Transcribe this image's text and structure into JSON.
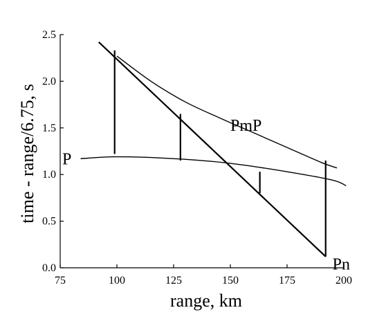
{
  "chart_data": {
    "type": "line",
    "title": "",
    "xlabel": "range, km",
    "ylabel": "time - range/6.75, s",
    "xlim": [
      75,
      200
    ],
    "ylim": [
      0,
      2.5
    ],
    "xticks": [
      75,
      100,
      125,
      150,
      175,
      200
    ],
    "yticks": [
      0.0,
      0.5,
      1.0,
      1.5,
      2.0,
      2.5
    ],
    "xtick_labels": [
      "75",
      "100",
      "125",
      "150",
      "175",
      "200"
    ],
    "ytick_labels": [
      "0.0",
      "0.5",
      "1.0",
      "1.5",
      "2.0",
      "2.5"
    ],
    "grid": false,
    "series": [
      {
        "name": "P",
        "stroke_width": 1.4,
        "points": [
          [
            84,
            1.17
          ],
          [
            100,
            1.19
          ],
          [
            125,
            1.17
          ],
          [
            150,
            1.12
          ],
          [
            175,
            1.03
          ],
          [
            195,
            0.94
          ],
          [
            201,
            0.88
          ]
        ]
      },
      {
        "name": "PmP",
        "stroke_width": 1.4,
        "points": [
          [
            100,
            2.27
          ],
          [
            115,
            2.0
          ],
          [
            130,
            1.78
          ],
          [
            145,
            1.61
          ],
          [
            160,
            1.45
          ],
          [
            175,
            1.29
          ],
          [
            190,
            1.13
          ],
          [
            197,
            1.07
          ]
        ]
      },
      {
        "name": "Pn",
        "stroke_width": 2.2,
        "points": [
          [
            92,
            2.42
          ],
          [
            192,
            0.12
          ]
        ]
      }
    ],
    "vertical_segments": [
      {
        "x": 99,
        "y_from": 1.22,
        "y_to": 2.33
      },
      {
        "x": 128,
        "y_from": 1.15,
        "y_to": 1.65
      },
      {
        "x": 163,
        "y_from": 0.8,
        "y_to": 1.03
      },
      {
        "x": 192,
        "y_from": 0.12,
        "y_to": 1.15
      }
    ],
    "annotations": [
      {
        "text": "P",
        "x": 80,
        "y": 1.17,
        "anchor": "end"
      },
      {
        "text": "PmP",
        "x": 150,
        "y": 1.53,
        "anchor": "start"
      },
      {
        "text": "Pn",
        "x": 195,
        "y": 0.04,
        "anchor": "start"
      }
    ]
  }
}
